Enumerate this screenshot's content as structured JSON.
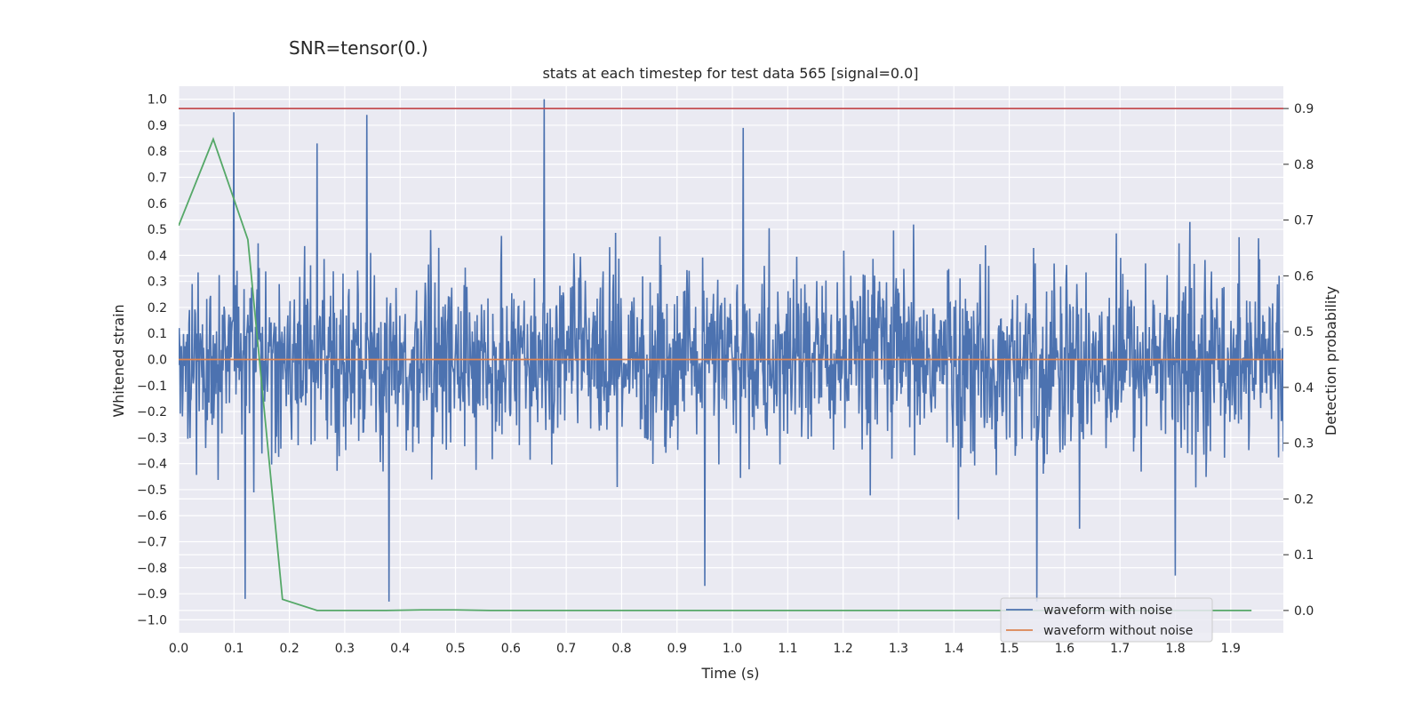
{
  "chart_data": {
    "type": "line",
    "suptitle": "SNR=tensor(0.)",
    "title": "stats at each timestep for test data 565 [signal=0.0]",
    "xlabel": "Time (s)",
    "ylabel": "Whitened strain",
    "y2label": "Detection probability",
    "xlim": [
      0.0,
      1.995
    ],
    "ylim": [
      -1.05,
      1.05
    ],
    "y2lim": [
      -0.04,
      0.94
    ],
    "x_ticks": [
      0.0,
      0.1,
      0.2,
      0.3,
      0.4,
      0.5,
      0.6,
      0.7,
      0.8,
      0.9,
      1.0,
      1.1,
      1.2,
      1.3,
      1.4,
      1.5,
      1.6,
      1.7,
      1.8,
      1.9
    ],
    "x_tick_labels": [
      "0.0",
      "0.1",
      "0.2",
      "0.3",
      "0.4",
      "0.5",
      "0.6",
      "0.7",
      "0.8",
      "0.9",
      "1.0",
      "1.1",
      "1.2",
      "1.3",
      "1.4",
      "1.5",
      "1.6",
      "1.7",
      "1.8",
      "1.9"
    ],
    "y_ticks": [
      1.0,
      0.9,
      0.8,
      0.7,
      0.6,
      0.5,
      0.4,
      0.3,
      0.2,
      0.1,
      0.0,
      -0.1,
      -0.2,
      -0.3,
      -0.4,
      -0.5,
      -0.6,
      -0.7,
      -0.8,
      -0.9,
      -1.0
    ],
    "y_tick_labels": [
      "1.0",
      "0.9",
      "0.8",
      "0.7",
      "0.6",
      "0.5",
      "0.4",
      "0.3",
      "0.2",
      "0.1",
      "0.0",
      "−0.1",
      "−0.2",
      "−0.3",
      "−0.4",
      "−0.5",
      "−0.6",
      "−0.7",
      "−0.8",
      "−0.9",
      "−1.0"
    ],
    "y2_ticks": [
      0.9,
      0.8,
      0.7,
      0.6,
      0.5,
      0.4,
      0.3,
      0.2,
      0.1,
      0.0
    ],
    "y2_tick_labels": [
      "0.9",
      "0.8",
      "0.7",
      "0.6",
      "0.5",
      "0.4",
      "0.3",
      "0.2",
      "0.1",
      "0.0"
    ],
    "grid": true,
    "legend_position": "bottom-right",
    "series": [
      {
        "name": "waveform with noise",
        "color": "#4c72b0",
        "axis": "left",
        "x_range": [
          0.0,
          2.0
        ],
        "sample_rate_hz": 1024,
        "y_approx_range": [
          -0.93,
          1.0
        ],
        "representative_peaks": [
          [
            0.1,
            0.95
          ],
          [
            0.25,
            0.83
          ],
          [
            0.34,
            0.94
          ],
          [
            0.66,
            1.0
          ],
          [
            1.02,
            0.89
          ],
          [
            0.12,
            -0.92
          ],
          [
            0.38,
            -0.93
          ],
          [
            0.95,
            -0.87
          ],
          [
            1.55,
            -0.93
          ],
          [
            1.8,
            -0.83
          ]
        ]
      },
      {
        "name": "waveform without noise",
        "color": "#dd8452",
        "axis": "left",
        "x": [
          0.0,
          2.0
        ],
        "y": [
          0.0,
          0.0
        ]
      },
      {
        "color": "#55a868",
        "axis": "right",
        "x": [
          0.0,
          0.0625,
          0.125,
          0.1875,
          0.25,
          0.3125,
          0.375,
          0.4375,
          0.5,
          0.5625,
          0.625,
          0.6875,
          0.75,
          0.8125,
          0.875,
          0.9375,
          1.0,
          1.0625,
          1.125,
          1.1875,
          1.25,
          1.3125,
          1.375,
          1.4375,
          1.5,
          1.5625,
          1.625,
          1.6875,
          1.75,
          1.8125,
          1.875,
          1.9375
        ],
        "y": [
          0.69,
          0.845,
          0.665,
          0.02,
          0.0,
          0.0,
          0.0,
          0.001,
          0.001,
          0.0,
          0.0,
          0.0,
          0.0,
          0.0,
          0.0,
          0.0,
          0.0,
          0.0,
          0.0,
          0.0,
          0.0,
          0.0,
          0.0,
          0.0,
          0.0,
          0.0,
          0.0,
          0.0,
          0.0,
          0.0,
          0.0,
          0.0
        ]
      },
      {
        "color": "#c44e52",
        "axis": "right",
        "x": [
          0.0,
          2.0
        ],
        "y": [
          0.9,
          0.9
        ]
      }
    ]
  }
}
